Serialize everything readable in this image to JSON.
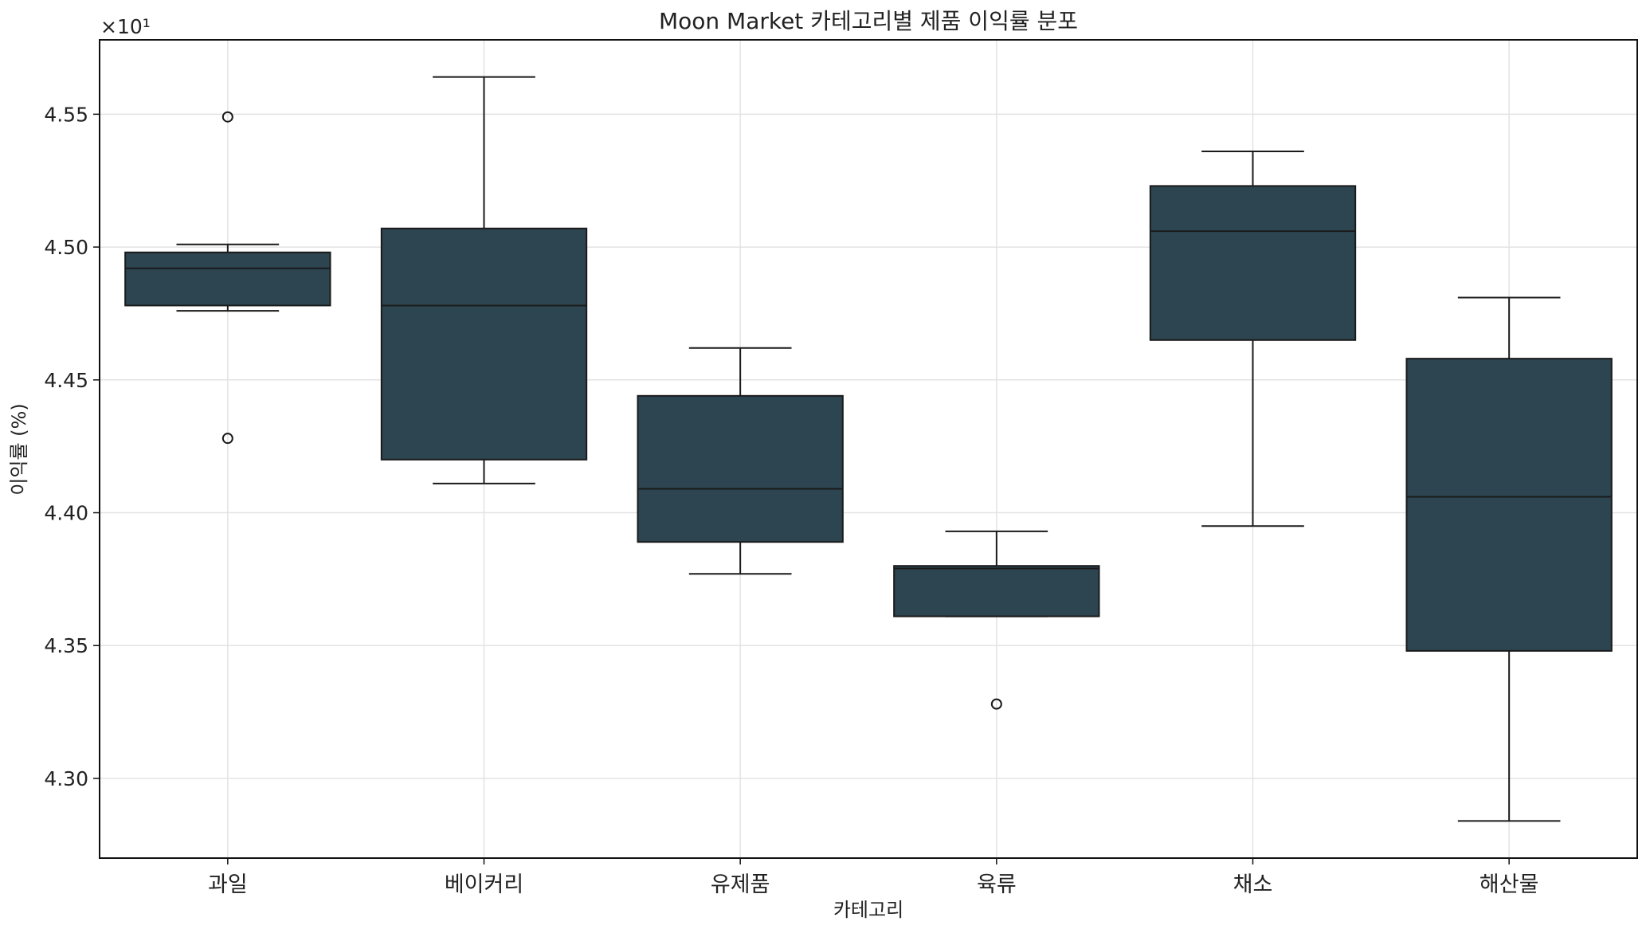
{
  "chart_data": {
    "type": "box",
    "title": "Moon Market 카테고리별 제품 이익률 분포",
    "xlabel": "카테고리",
    "ylabel": "이익률 (%)",
    "y_offset_text": "×10¹",
    "y_tick_labels": [
      "4.30",
      "4.35",
      "4.40",
      "4.45",
      "4.50",
      "4.55"
    ],
    "y_ticks": [
      43.0,
      43.5,
      44.0,
      44.5,
      45.0,
      45.5
    ],
    "ylim": [
      42.7,
      45.78
    ],
    "grid": true,
    "box_color": "#2c4550",
    "edge_color": "#1a1a1a",
    "categories": [
      "과일",
      "베이커리",
      "유제품",
      "육류",
      "채소",
      "해산물"
    ],
    "boxes": [
      {
        "name": "과일",
        "whisker_low": 44.76,
        "q1": 44.78,
        "median": 44.92,
        "q3": 44.98,
        "whisker_high": 45.01,
        "outliers": [
          45.49,
          44.28
        ]
      },
      {
        "name": "베이커리",
        "whisker_low": 44.11,
        "q1": 44.2,
        "median": 44.78,
        "q3": 45.07,
        "whisker_high": 45.64,
        "outliers": []
      },
      {
        "name": "유제품",
        "whisker_low": 43.77,
        "q1": 43.89,
        "median": 44.09,
        "q3": 44.44,
        "whisker_high": 44.62,
        "outliers": []
      },
      {
        "name": "육류",
        "whisker_low": 43.61,
        "q1": 43.61,
        "median": 43.79,
        "q3": 43.8,
        "whisker_high": 43.93,
        "outliers": [
          43.28
        ]
      },
      {
        "name": "채소",
        "whisker_low": 43.95,
        "q1": 44.65,
        "median": 45.06,
        "q3": 45.23,
        "whisker_high": 45.36,
        "outliers": []
      },
      {
        "name": "해산물",
        "whisker_low": 42.84,
        "q1": 43.48,
        "median": 44.06,
        "q3": 44.58,
        "whisker_high": 44.81,
        "outliers": []
      }
    ]
  }
}
